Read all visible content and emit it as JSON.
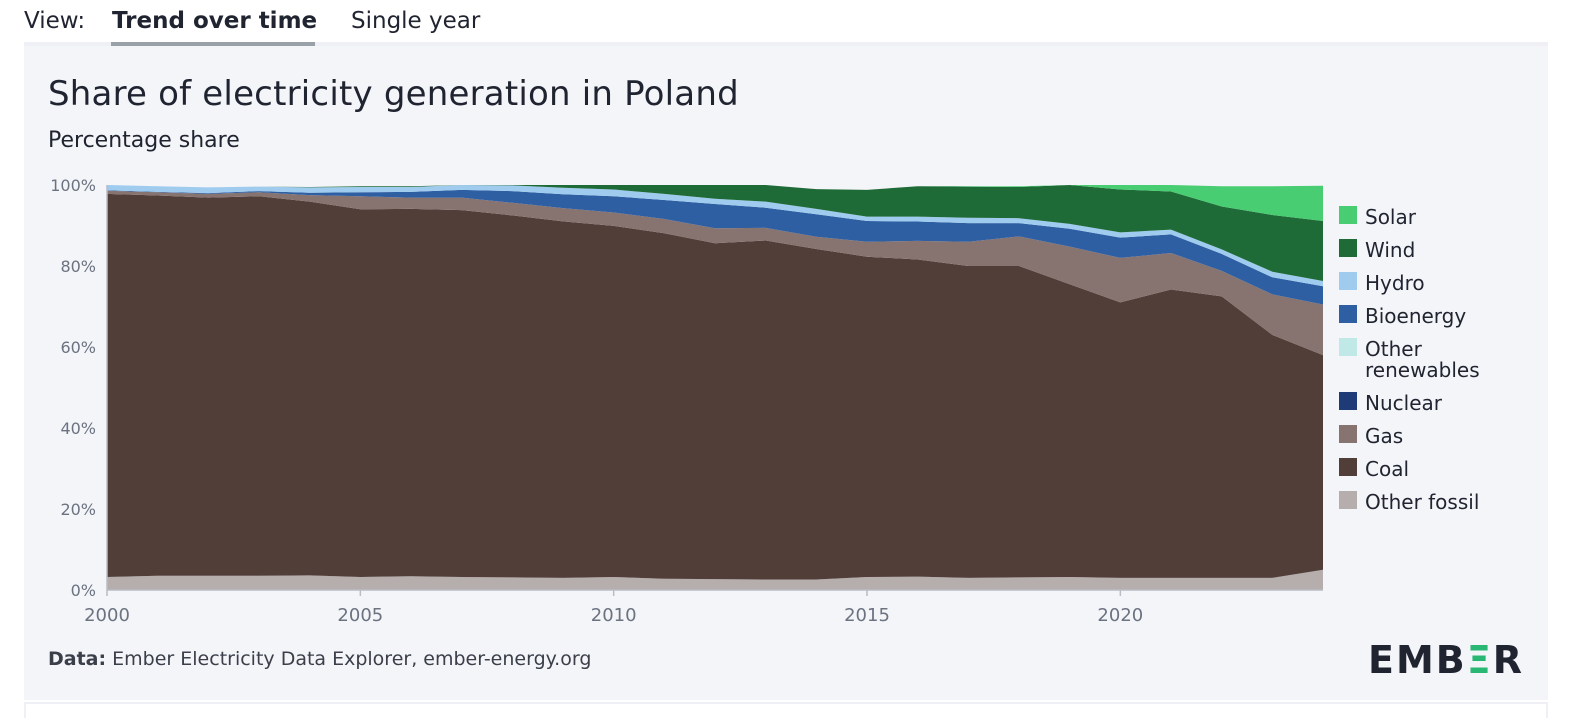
{
  "view_bar": {
    "label": "View:",
    "tabs": [
      {
        "label": "Trend over time",
        "active": true
      },
      {
        "label": "Single year",
        "active": false
      }
    ]
  },
  "chart": {
    "title": "Share of electricity generation in Poland",
    "subtitle": "Percentage share",
    "source_label": "Data:",
    "source_text": "Ember Electricity Data Explorer, ember-energy.org",
    "logo": "EMBER"
  },
  "chart_data": {
    "type": "area",
    "stacked": true,
    "title": "Share of electricity generation in Poland",
    "subtitle": "Percentage share",
    "xlabel": "",
    "ylabel": "",
    "xlim": [
      2000,
      2024
    ],
    "ylim": [
      0,
      100
    ],
    "y_ticks": [
      "0%",
      "20%",
      "40%",
      "60%",
      "80%",
      "100%"
    ],
    "y_tick_values": [
      0,
      20,
      40,
      60,
      80,
      100
    ],
    "x_ticks": [
      "2000",
      "2005",
      "2010",
      "2015",
      "2020"
    ],
    "x_tick_values": [
      2000,
      2005,
      2010,
      2015,
      2020
    ],
    "x": [
      2000,
      2001,
      2002,
      2003,
      2004,
      2005,
      2006,
      2007,
      2008,
      2009,
      2010,
      2011,
      2012,
      2013,
      2014,
      2015,
      2016,
      2017,
      2018,
      2019,
      2020,
      2021,
      2022,
      2023,
      2024
    ],
    "series": [
      {
        "name": "Other fossil",
        "color": "#b5aeac",
        "values": [
          3.2,
          3.5,
          3.5,
          3.5,
          3.6,
          3.2,
          3.4,
          3.2,
          3.1,
          3.0,
          3.2,
          2.8,
          2.7,
          2.6,
          2.6,
          3.2,
          3.3,
          3.0,
          3.1,
          3.2,
          3.0,
          3.0,
          3.0,
          3.0,
          5.0
        ]
      },
      {
        "name": "Coal",
        "color": "#523e39",
        "values": [
          94.6,
          93.9,
          93.4,
          93.7,
          92.3,
          90.8,
          90.7,
          90.6,
          89.4,
          88.0,
          86.7,
          85.3,
          82.9,
          83.7,
          81.6,
          79.1,
          78.3,
          77.0,
          76.9,
          72.3,
          68.0,
          71.2,
          69.5,
          60.0,
          53.0
        ]
      },
      {
        "name": "Gas",
        "color": "#877471",
        "values": [
          0.8,
          0.8,
          0.9,
          1.0,
          1.6,
          3.2,
          2.8,
          3.1,
          3.1,
          3.3,
          3.3,
          3.5,
          3.7,
          3.1,
          3.0,
          3.7,
          4.6,
          6.0,
          7.3,
          9.3,
          11.0,
          9.0,
          6.3,
          10.0,
          12.5
        ]
      },
      {
        "name": "Nuclear",
        "color": "#1e3b77",
        "values": [
          0,
          0,
          0,
          0,
          0,
          0,
          0,
          0,
          0,
          0,
          0,
          0,
          0,
          0,
          0,
          0,
          0,
          0,
          0,
          0,
          0,
          0,
          0,
          0,
          0
        ]
      },
      {
        "name": "Other renewables",
        "color": "#bfe8e6",
        "values": [
          0,
          0,
          0,
          0,
          0,
          0,
          0,
          0,
          0,
          0,
          0,
          0,
          0,
          0,
          0,
          0,
          0,
          0,
          0,
          0,
          0,
          0,
          0,
          0,
          0
        ]
      },
      {
        "name": "Bioenergy",
        "color": "#2f5fa3",
        "values": [
          0.1,
          0.1,
          0.2,
          0.3,
          0.6,
          1.0,
          1.4,
          1.9,
          2.9,
          3.4,
          4.0,
          4.7,
          6.0,
          5.0,
          5.6,
          5.1,
          4.8,
          4.6,
          3.3,
          4.4,
          5.0,
          4.6,
          4.2,
          4.2,
          4.5
        ]
      },
      {
        "name": "Hydro",
        "color": "#9fcbee",
        "values": [
          1.3,
          1.4,
          1.4,
          1.1,
          1.3,
          1.3,
          1.2,
          1.2,
          1.4,
          1.6,
          1.7,
          1.5,
          1.3,
          1.5,
          1.3,
          1.1,
          1.2,
          1.3,
          1.2,
          1.2,
          1.3,
          1.2,
          1.1,
          1.4,
          1.3
        ]
      },
      {
        "name": "Wind",
        "color": "#1f6b37",
        "values": [
          0,
          0,
          0,
          0,
          0.1,
          0.2,
          0.2,
          0.3,
          0.5,
          0.7,
          1.1,
          2.2,
          3.5,
          4.1,
          4.9,
          6.6,
          7.5,
          7.7,
          7.7,
          9.8,
          10.6,
          9.4,
          10.6,
          14.0,
          14.8
        ]
      },
      {
        "name": "Solar",
        "color": "#49cd72",
        "values": [
          0,
          0,
          0,
          0,
          0,
          0,
          0,
          0,
          0,
          0,
          0,
          0,
          0,
          0,
          0,
          0,
          0,
          0.1,
          0.2,
          0.6,
          1.1,
          2.3,
          5.0,
          7.1,
          8.7
        ]
      }
    ],
    "legend_order": [
      "Solar",
      "Wind",
      "Hydro",
      "Bioenergy",
      "Other renewables",
      "Nuclear",
      "Gas",
      "Coal",
      "Other fossil"
    ],
    "legend_position": "right"
  }
}
